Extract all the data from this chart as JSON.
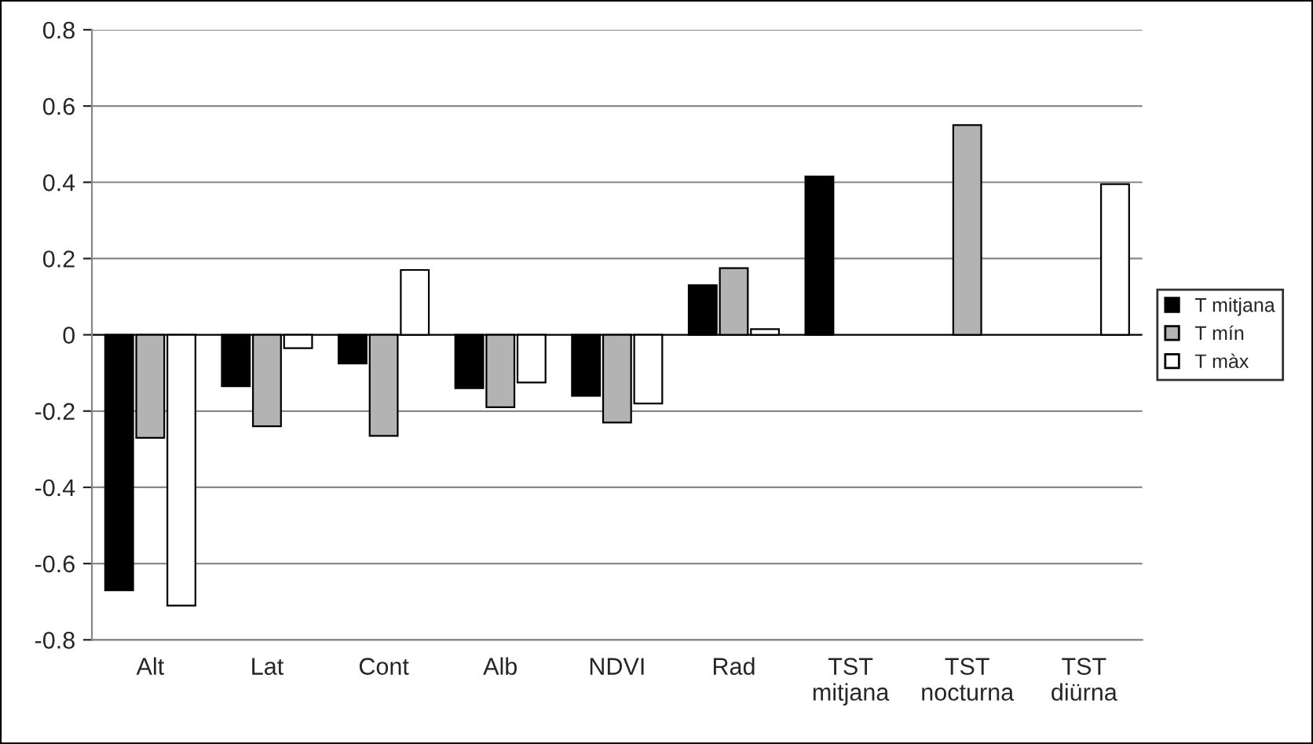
{
  "chart_data": {
    "type": "bar",
    "categories": [
      "Alt",
      "Lat",
      "Cont",
      "Alb",
      "NDVI",
      "Rad",
      "TST\nmitjana",
      "TST\nnocturna",
      "TST\ndiürna"
    ],
    "series": [
      {
        "name": "T mitjana",
        "color": "#000000",
        "values": [
          -0.67,
          -0.135,
          -0.075,
          -0.14,
          -0.16,
          0.13,
          0.415,
          null,
          null
        ]
      },
      {
        "name": "T mín",
        "color": "#b3b3b3",
        "values": [
          -0.27,
          -0.24,
          -0.265,
          -0.19,
          -0.23,
          0.175,
          null,
          0.55,
          null
        ]
      },
      {
        "name": "T màx",
        "color": "#ffffff",
        "values": [
          -0.71,
          -0.035,
          0.17,
          -0.125,
          -0.18,
          0.015,
          null,
          null,
          0.395
        ]
      }
    ],
    "ylim": [
      -0.8,
      0.8
    ],
    "yticks": [
      -0.8,
      -0.6,
      -0.4,
      -0.2,
      0,
      0.2,
      0.4,
      0.6,
      0.8
    ],
    "grid": "y",
    "legend": "right"
  }
}
